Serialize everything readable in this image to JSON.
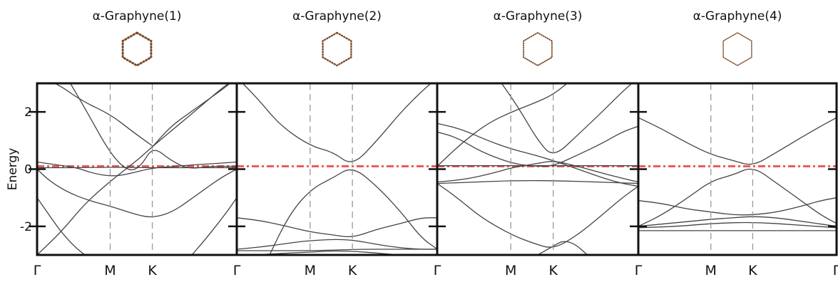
{
  "chart_data": [
    {
      "type": "line",
      "title": "α-Graphyne(1)",
      "ylabel": "Energy",
      "ylim": [
        -3,
        3
      ],
      "yticks": [
        2,
        0,
        -2
      ],
      "x_ticks": [
        "Γ",
        "M",
        "K",
        "Γ"
      ],
      "x_tick_positions": [
        0,
        0.366,
        0.577,
        1
      ],
      "fermi_level": 0.1,
      "fermi_color": "#ef5a5a",
      "band_color": "#444444",
      "structure_color": "#7a4a2a",
      "series": [
        {
          "x": [
            0,
            0.1,
            0.22,
            0.37,
            0.48,
            0.58
          ],
          "y": [
            3.2,
            3.0,
            2.4,
            1.9,
            1.3,
            0.8
          ]
        },
        {
          "x": [
            0,
            0.12,
            0.24,
            0.37,
            0.5,
            0.58,
            0.7,
            0.82,
            0.92,
            1
          ],
          "y": [
            -3.0,
            -2.2,
            -1.2,
            -0.4,
            0.3,
            0.8,
            1.5,
            2.2,
            2.8,
            3.2
          ]
        },
        {
          "x": [
            0.58,
            0.67,
            0.77,
            0.87,
            0.95,
            1
          ],
          "y": [
            0.8,
            1.5,
            2.0,
            2.5,
            2.9,
            3.2
          ]
        },
        {
          "x": [
            0.15,
            0.25,
            0.37,
            0.46,
            0.52,
            0.58,
            0.67,
            0.76,
            0.86,
            1
          ],
          "y": [
            3.2,
            2.0,
            0.5,
            -0.1,
            0.1,
            0.8,
            0.3,
            0.0,
            0.1,
            0.1
          ]
        },
        {
          "x": [
            0,
            0.1,
            0.2,
            0.28,
            0.37,
            0.44,
            0.58,
            0.7,
            0.78,
            0.9,
            1
          ],
          "y": [
            0.25,
            0.15,
            0.05,
            -0.15,
            -0.25,
            -0.2,
            0.05,
            0.1,
            0.15,
            0.2,
            0.25
          ]
        },
        {
          "x": [
            0,
            0.08,
            0.2,
            0.37,
            0.58,
            0.72,
            0.85,
            1
          ],
          "y": [
            0.05,
            0.05,
            0.05,
            0.07,
            0.05,
            0.05,
            0.05,
            0.05
          ]
        },
        {
          "x": [
            0,
            0.06,
            0.15,
            0.26,
            0.37,
            0.5,
            0.58,
            0.68,
            0.8,
            0.92,
            1
          ],
          "y": [
            0.0,
            -0.4,
            -0.8,
            -1.1,
            -1.3,
            -1.6,
            -1.7,
            -1.5,
            -0.9,
            -0.3,
            0.0
          ]
        },
        {
          "x": [
            0,
            0.05,
            0.12,
            0.2,
            0.28
          ],
          "y": [
            -1.0,
            -1.5,
            -2.2,
            -2.8,
            -3.2
          ]
        },
        {
          "x": [
            0.75,
            0.85,
            0.95,
            1
          ],
          "y": [
            -3.2,
            -2.4,
            -1.5,
            -1.0
          ]
        }
      ]
    },
    {
      "type": "line",
      "title": "α-Graphyne(2)",
      "ylim": [
        -3,
        3
      ],
      "x_ticks": [
        "M",
        "K"
      ],
      "x_tick_positions": [
        0.366,
        0.577
      ],
      "fermi_level": 0.1,
      "series": [
        {
          "x": [
            0,
            0.1,
            0.22,
            0.37,
            0.48,
            0.577,
            0.7,
            0.82,
            0.92,
            1
          ],
          "y": [
            3.2,
            2.5,
            1.5,
            0.8,
            0.6,
            0.1,
            1.0,
            2.0,
            2.7,
            3.2
          ]
        },
        {
          "x": [
            0.15,
            0.26,
            0.37,
            0.48,
            0.577,
            0.7,
            0.82,
            0.92,
            1
          ],
          "y": [
            -3.2,
            -1.6,
            -0.7,
            -0.3,
            0.1,
            -0.6,
            -1.5,
            -2.4,
            -2.8
          ]
        },
        {
          "x": [
            0,
            0.12,
            0.25,
            0.37,
            0.48,
            0.577,
            0.7,
            0.82,
            0.92,
            1
          ],
          "y": [
            -1.7,
            -1.8,
            -2.0,
            -2.2,
            -2.3,
            -2.4,
            -2.1,
            -1.9,
            -1.7,
            -1.7
          ]
        },
        {
          "x": [
            0,
            0.15,
            0.3,
            0.37,
            0.5,
            0.6,
            0.75,
            0.9,
            1
          ],
          "y": [
            -2.8,
            -2.7,
            -2.55,
            -2.5,
            -2.45,
            -2.5,
            -2.7,
            -2.8,
            -2.8
          ]
        },
        {
          "x": [
            0,
            0.2,
            0.4,
            0.6,
            0.8,
            1
          ],
          "y": [
            -2.85,
            -2.85,
            -2.85,
            -2.8,
            -2.8,
            -2.8
          ]
        },
        {
          "x": [
            0,
            0.2,
            0.37,
            0.5,
            0.65,
            0.8,
            1
          ],
          "y": [
            -3.05,
            -2.95,
            -2.9,
            -2.85,
            -2.9,
            -3.0,
            -3.05
          ]
        }
      ]
    },
    {
      "type": "line",
      "title": "α-Graphyne(3)",
      "ylim": [
        -3,
        3
      ],
      "x_ticks": [
        "Γ",
        "M",
        "K"
      ],
      "x_tick_positions": [
        0,
        0.366,
        0.577
      ],
      "fermi_level": 0.1,
      "series": [
        {
          "x": [
            0,
            0.12,
            0.25,
            0.37,
            0.48,
            0.577,
            0.68
          ],
          "y": [
            0.1,
            0.9,
            1.6,
            2.0,
            2.3,
            2.6,
            3.2
          ]
        },
        {
          "x": [
            0,
            0.12,
            0.25,
            0.37,
            0.48,
            0.577,
            0.7,
            0.82,
            0.92,
            1
          ],
          "y": [
            1.6,
            1.4,
            1.0,
            0.7,
            0.5,
            0.3,
            -0.0,
            -0.3,
            -0.5,
            -0.6
          ]
        },
        {
          "x": [
            0,
            0.1,
            0.22,
            0.37,
            0.48,
            0.577,
            0.7,
            0.82,
            0.92,
            1
          ],
          "y": [
            1.3,
            1.1,
            0.6,
            0.2,
            0.1,
            0.1,
            0.5,
            0.9,
            1.3,
            1.5
          ]
        },
        {
          "x": [
            0.3,
            0.4,
            0.5,
            0.577,
            0.7,
            0.82,
            0.92,
            1
          ],
          "y": [
            3.2,
            2.2,
            1.0,
            0.4,
            1.2,
            2.0,
            2.7,
            3.2
          ]
        },
        {
          "x": [
            0,
            0.15,
            0.3,
            0.37,
            0.5,
            0.577,
            0.7,
            0.85,
            1
          ],
          "y": [
            -0.45,
            -0.35,
            -0.1,
            0.05,
            0.2,
            0.3,
            0.1,
            -0.2,
            -0.45
          ]
        },
        {
          "x": [
            0,
            0.37,
            0.577,
            0.8,
            1
          ],
          "y": [
            0.12,
            0.12,
            0.12,
            0.12,
            0.12
          ]
        },
        {
          "x": [
            0,
            0.2,
            0.37,
            0.577,
            0.8,
            1
          ],
          "y": [
            -0.5,
            -0.45,
            -0.4,
            -0.4,
            -0.45,
            -0.5
          ]
        },
        {
          "x": [
            0,
            0.1,
            0.22,
            0.37,
            0.48,
            0.577,
            0.7,
            0.82,
            0.92,
            1
          ],
          "y": [
            -0.5,
            -1.0,
            -1.7,
            -2.3,
            -2.6,
            -2.8,
            -2.3,
            -1.6,
            -1.0,
            -0.6
          ]
        },
        {
          "x": [
            0.45,
            0.55,
            0.65,
            0.78
          ],
          "y": [
            -3.2,
            -2.8,
            -2.4,
            -3.2
          ]
        }
      ]
    },
    {
      "type": "line",
      "title": "α-Graphyne(4)",
      "ylim": [
        -3,
        3
      ],
      "x_ticks": [
        "Γ",
        "M",
        "K",
        "Γ"
      ],
      "x_tick_positions": [
        0,
        0.366,
        0.577,
        1
      ],
      "fermi_level": 0.1,
      "series": [
        {
          "x": [
            0,
            0.12,
            0.25,
            0.37,
            0.48,
            0.577,
            0.7,
            0.82,
            0.92,
            1
          ],
          "y": [
            1.8,
            1.4,
            0.9,
            0.5,
            0.3,
            0.1,
            0.6,
            1.1,
            1.5,
            1.8
          ]
        },
        {
          "x": [
            0,
            0.12,
            0.25,
            0.37,
            0.48,
            0.577,
            0.7,
            0.82,
            0.92,
            1
          ],
          "y": [
            -2.0,
            -1.6,
            -1.0,
            -0.4,
            -0.2,
            0.1,
            -0.5,
            -1.1,
            -1.6,
            -1.9
          ]
        },
        {
          "x": [
            0,
            0.12,
            0.25,
            0.37,
            0.48,
            0.577,
            0.7,
            0.82,
            0.92,
            1
          ],
          "y": [
            -1.1,
            -1.2,
            -1.4,
            -1.5,
            -1.6,
            -1.6,
            -1.5,
            -1.3,
            -1.1,
            -1.0
          ]
        },
        {
          "x": [
            0,
            0.15,
            0.3,
            0.37,
            0.48,
            0.577,
            0.7,
            0.85,
            1
          ],
          "y": [
            -2.0,
            -1.9,
            -1.8,
            -1.75,
            -1.7,
            -1.65,
            -1.7,
            -1.85,
            -2.0
          ]
        },
        {
          "x": [
            0,
            0.2,
            0.37,
            0.577,
            0.8,
            1
          ],
          "y": [
            -2.05,
            -2.0,
            -1.9,
            -1.85,
            -1.95,
            -2.05
          ]
        },
        {
          "x": [
            0,
            0.3,
            0.6,
            1
          ],
          "y": [
            -2.15,
            -2.15,
            -2.15,
            -2.15
          ]
        }
      ]
    }
  ]
}
